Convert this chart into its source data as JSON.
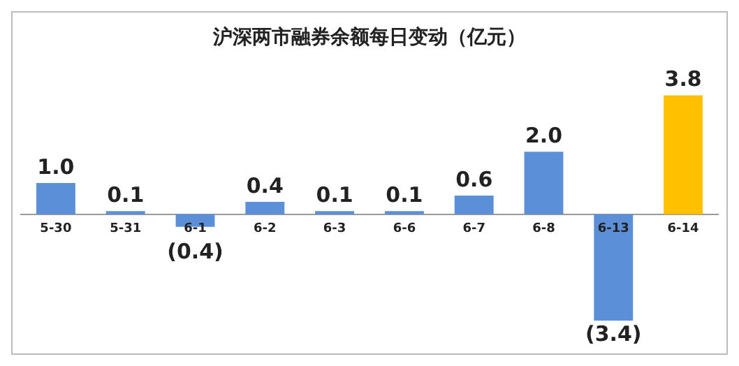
{
  "chart_data": {
    "type": "bar",
    "title": "沪深两市融券余额每日变动（亿元）",
    "categories": [
      "5-30",
      "5-31",
      "6-1",
      "6-2",
      "6-3",
      "6-6",
      "6-7",
      "6-8",
      "6-13",
      "6-14"
    ],
    "values": [
      1.0,
      0.1,
      -0.4,
      0.4,
      0.1,
      0.1,
      0.6,
      2.0,
      -3.4,
      3.8
    ],
    "colors": [
      "#5b8fd8",
      "#5b8fd8",
      "#5b8fd8",
      "#5b8fd8",
      "#5b8fd8",
      "#5b8fd8",
      "#5b8fd8",
      "#5b8fd8",
      "#5b8fd8",
      "#ffc000"
    ],
    "value_labels": [
      "1.0",
      "0.1",
      "(0.4)",
      "0.4",
      "0.1",
      "0.1",
      "0.6",
      "2.0",
      "(3.4)",
      "3.8"
    ],
    "legend": false,
    "grid": false
  }
}
